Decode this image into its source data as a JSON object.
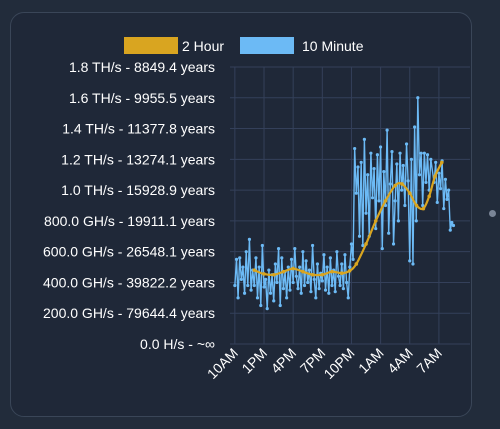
{
  "chart_data": {
    "type": "line",
    "title": "",
    "xlabel": "",
    "ylabel": "",
    "legend_position": "top",
    "grid": true,
    "x_ticks": [
      "10AM",
      "1PM",
      "4PM",
      "7PM",
      "10PM",
      "1AM",
      "4AM",
      "7AM"
    ],
    "y_ticks": [
      "0.0 H/s - ~∞",
      "200.0 GH/s - 79644.4 years",
      "400.0 GH/s - 39822.2 years",
      "600.0 GH/s - 26548.1 years",
      "800.0 GH/s - 19911.1 years",
      "1.0 TH/s - 15928.9 years",
      "1.2 TH/s - 13274.1 years",
      "1.4 TH/s - 11377.8 years",
      "1.6 TH/s - 9955.5 years",
      "1.8 TH/s - 8849.4 years"
    ],
    "y_unit": "GH/s",
    "ylim": [
      0,
      1800
    ],
    "x_unit": "hours after 10AM",
    "xlim": [
      -0.5,
      24.2
    ],
    "series": [
      {
        "name": "2 Hour",
        "color": "#d9a520",
        "points": [
          [
            2,
            480
          ],
          [
            3,
            455
          ],
          [
            4,
            450
          ],
          [
            5,
            470
          ],
          [
            6,
            490
          ],
          [
            7,
            470
          ],
          [
            8,
            450
          ],
          [
            9,
            450
          ],
          [
            10,
            470
          ],
          [
            11,
            460
          ],
          [
            11.8,
            475
          ],
          [
            12.5,
            520
          ],
          [
            13.5,
            650
          ],
          [
            14.5,
            800
          ],
          [
            15.5,
            930
          ],
          [
            16.5,
            1030
          ],
          [
            17.2,
            1040
          ],
          [
            18,
            980
          ],
          [
            18.7,
            900
          ],
          [
            19.4,
            880
          ],
          [
            20,
            960
          ],
          [
            20.6,
            1090
          ],
          [
            21.3,
            1180
          ]
        ]
      },
      {
        "name": "10 Minute",
        "color": "#6cbaf5",
        "points": [
          [
            0,
            380
          ],
          [
            0.17,
            550
          ],
          [
            0.33,
            300
          ],
          [
            0.5,
            560
          ],
          [
            0.67,
            420
          ],
          [
            0.83,
            500
          ],
          [
            1,
            330
          ],
          [
            1.17,
            600
          ],
          [
            1.33,
            380
          ],
          [
            1.5,
            680
          ],
          [
            1.67,
            350
          ],
          [
            1.83,
            480
          ],
          [
            2,
            380
          ],
          [
            2.17,
            560
          ],
          [
            2.33,
            300
          ],
          [
            2.5,
            500
          ],
          [
            2.67,
            250
          ],
          [
            2.83,
            640
          ],
          [
            3,
            370
          ],
          [
            3.17,
            420
          ],
          [
            3.33,
            230
          ],
          [
            3.5,
            480
          ],
          [
            3.67,
            330
          ],
          [
            3.83,
            450
          ],
          [
            4,
            280
          ],
          [
            4.17,
            520
          ],
          [
            4.33,
            400
          ],
          [
            4.5,
            620
          ],
          [
            4.67,
            250
          ],
          [
            4.83,
            560
          ],
          [
            5,
            360
          ],
          [
            5.17,
            470
          ],
          [
            5.33,
            300
          ],
          [
            5.5,
            500
          ],
          [
            5.67,
            350
          ],
          [
            5.83,
            550
          ],
          [
            6,
            400
          ],
          [
            6.17,
            620
          ],
          [
            6.33,
            440
          ],
          [
            6.5,
            360
          ],
          [
            6.67,
            500
          ],
          [
            6.83,
            330
          ],
          [
            7,
            600
          ],
          [
            7.17,
            380
          ],
          [
            7.33,
            540
          ],
          [
            7.5,
            400
          ],
          [
            7.67,
            480
          ],
          [
            7.83,
            340
          ],
          [
            8,
            640
          ],
          [
            8.17,
            420
          ],
          [
            8.33,
            300
          ],
          [
            8.5,
            520
          ],
          [
            8.67,
            360
          ],
          [
            8.83,
            460
          ],
          [
            9,
            410
          ],
          [
            9.17,
            580
          ],
          [
            9.33,
            350
          ],
          [
            9.5,
            500
          ],
          [
            9.67,
            330
          ],
          [
            9.83,
            560
          ],
          [
            10,
            380
          ],
          [
            10.17,
            480
          ],
          [
            10.33,
            340
          ],
          [
            10.5,
            600
          ],
          [
            10.67,
            440
          ],
          [
            10.83,
            380
          ],
          [
            11,
            520
          ],
          [
            11.17,
            360
          ],
          [
            11.33,
            580
          ],
          [
            11.5,
            400
          ],
          [
            11.67,
            300
          ],
          [
            11.83,
            500
          ],
          [
            12,
            650
          ],
          [
            12.17,
            550
          ],
          [
            12.33,
            1270
          ],
          [
            12.5,
            980
          ],
          [
            12.67,
            1150
          ],
          [
            12.83,
            700
          ],
          [
            13,
            1180
          ],
          [
            13.17,
            640
          ],
          [
            13.33,
            1330
          ],
          [
            13.5,
            850
          ],
          [
            13.67,
            1100
          ],
          [
            13.83,
            700
          ],
          [
            14,
            1240
          ],
          [
            14.17,
            950
          ],
          [
            14.33,
            1140
          ],
          [
            14.5,
            750
          ],
          [
            14.67,
            1230
          ],
          [
            14.83,
            930
          ],
          [
            15,
            1280
          ],
          [
            15.17,
            620
          ],
          [
            15.33,
            1120
          ],
          [
            15.5,
            900
          ],
          [
            15.67,
            1390
          ],
          [
            15.83,
            720
          ],
          [
            16,
            1040
          ],
          [
            16.17,
            1250
          ],
          [
            16.33,
            650
          ],
          [
            16.5,
            930
          ],
          [
            16.67,
            1170
          ],
          [
            16.83,
            800
          ],
          [
            17,
            1240
          ],
          [
            17.17,
            1000
          ],
          [
            17.33,
            1160
          ],
          [
            17.5,
            900
          ],
          [
            17.67,
            1300
          ],
          [
            17.83,
            1060
          ],
          [
            18,
            540
          ],
          [
            18.17,
            1200
          ],
          [
            18.33,
            520
          ],
          [
            18.5,
            1410
          ],
          [
            18.67,
            800
          ],
          [
            18.83,
            1600
          ],
          [
            19,
            1100
          ],
          [
            19.17,
            1240
          ],
          [
            19.33,
            900
          ],
          [
            19.5,
            1240
          ],
          [
            19.67,
            1050
          ],
          [
            19.83,
            1230
          ],
          [
            20,
            1000
          ],
          [
            20.17,
            1200
          ],
          [
            20.5,
            1050
          ],
          [
            20.67,
            1180
          ],
          [
            20.83,
            920
          ],
          [
            21,
            1110
          ],
          [
            21.17,
            1010
          ],
          [
            21.33,
            1190
          ],
          [
            21.5,
            880
          ],
          [
            21.67,
            1070
          ],
          [
            21.83,
            940
          ],
          [
            22,
            1000
          ],
          [
            22.17,
            740
          ],
          [
            22.33,
            790
          ],
          [
            22.5,
            770
          ]
        ]
      }
    ]
  }
}
